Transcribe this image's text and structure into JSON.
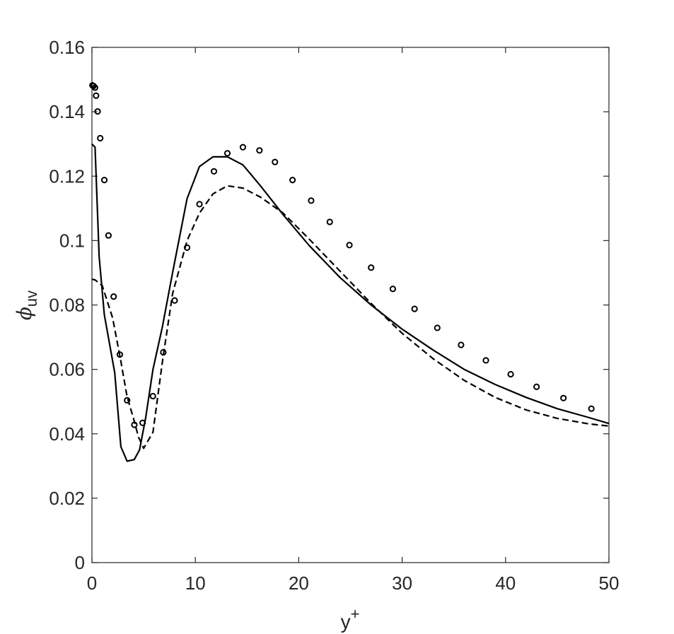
{
  "chart_data": {
    "type": "line",
    "title": "",
    "xlabel": {
      "base": "y",
      "sup": "+"
    },
    "ylabel": {
      "base": "ϕ",
      "sub": "uv"
    },
    "xlim": [
      0,
      50
    ],
    "ylim": [
      0,
      0.16
    ],
    "xticks": [
      0,
      10,
      20,
      30,
      40,
      50
    ],
    "xtick_labels": [
      "0",
      "10",
      "20",
      "30",
      "40",
      "50"
    ],
    "yticks": [
      0,
      0.02,
      0.04,
      0.06,
      0.08,
      0.1,
      0.12,
      0.14,
      0.16
    ],
    "ytick_labels": [
      "0",
      "0.02",
      "0.04",
      "0.06",
      "0.08",
      "0.1",
      "0.12",
      "0.14",
      "0.16"
    ],
    "grid": false,
    "legend": "none",
    "series": [
      {
        "style": "solid",
        "color": "#000000",
        "x": [
          0,
          0.3,
          0.7,
          1.2,
          2.2,
          2.8,
          3.4,
          4.1,
          4.6,
          5.2,
          5.9,
          6.8,
          7.8,
          9.2,
          10.4,
          11.7,
          13.1,
          14.6,
          16.3,
          18.5,
          21,
          24,
          27,
          30,
          33,
          36,
          39,
          42,
          45,
          48,
          50
        ],
        "y": [
          0.13,
          0.129,
          0.095,
          0.077,
          0.059,
          0.036,
          0.0315,
          0.032,
          0.035,
          0.045,
          0.06,
          0.073,
          0.09,
          0.113,
          0.123,
          0.126,
          0.126,
          0.1235,
          0.117,
          0.108,
          0.0985,
          0.0885,
          0.08,
          0.0725,
          0.066,
          0.06,
          0.0553,
          0.0513,
          0.0478,
          0.0451,
          0.0432
        ]
      },
      {
        "style": "dashed",
        "color": "#000000",
        "x": [
          0,
          0.3,
          1,
          2,
          2.8,
          3.4,
          4,
          4.5,
          5,
          5.9,
          6.8,
          7.8,
          9.2,
          10.4,
          11.7,
          13.1,
          14.6,
          16.3,
          18.5,
          21,
          24,
          27,
          30,
          33,
          36,
          39,
          42,
          45,
          48,
          50
        ],
        "y": [
          0.088,
          0.0878,
          0.086,
          0.076,
          0.0625,
          0.0515,
          0.045,
          0.039,
          0.0355,
          0.0405,
          0.062,
          0.0835,
          0.1,
          0.1085,
          0.1145,
          0.117,
          0.1163,
          0.1135,
          0.1085,
          0.1005,
          0.0905,
          0.0805,
          0.0712,
          0.0633,
          0.0566,
          0.0513,
          0.0474,
          0.0448,
          0.0431,
          0.0424
        ]
      },
      {
        "style": "markers",
        "marker": "circle",
        "color": "#000000",
        "x": [
          0.05,
          0.15,
          0.3,
          0.4,
          0.55,
          0.8,
          1.2,
          1.6,
          2.1,
          2.7,
          3.4,
          4.1,
          4.9,
          5.9,
          6.9,
          8,
          9.2,
          10.4,
          11.8,
          13.1,
          14.6,
          16.2,
          17.7,
          19.4,
          21.2,
          23.0,
          24.9,
          27.0,
          29.1,
          31.2,
          33.4,
          35.7,
          38.1,
          40.5,
          43.0,
          45.6,
          48.3
        ],
        "y": [
          0.1482,
          0.148,
          0.1475,
          0.145,
          0.1401,
          0.1318,
          0.1188,
          0.1016,
          0.0826,
          0.0646,
          0.0504,
          0.0428,
          0.0434,
          0.0517,
          0.0653,
          0.0814,
          0.0978,
          0.1113,
          0.1215,
          0.1271,
          0.129,
          0.128,
          0.1244,
          0.1188,
          0.1124,
          0.1058,
          0.0986,
          0.0916,
          0.085,
          0.0788,
          0.0729,
          0.0676,
          0.0628,
          0.0585,
          0.0546,
          0.0511,
          0.0478
        ]
      }
    ]
  }
}
